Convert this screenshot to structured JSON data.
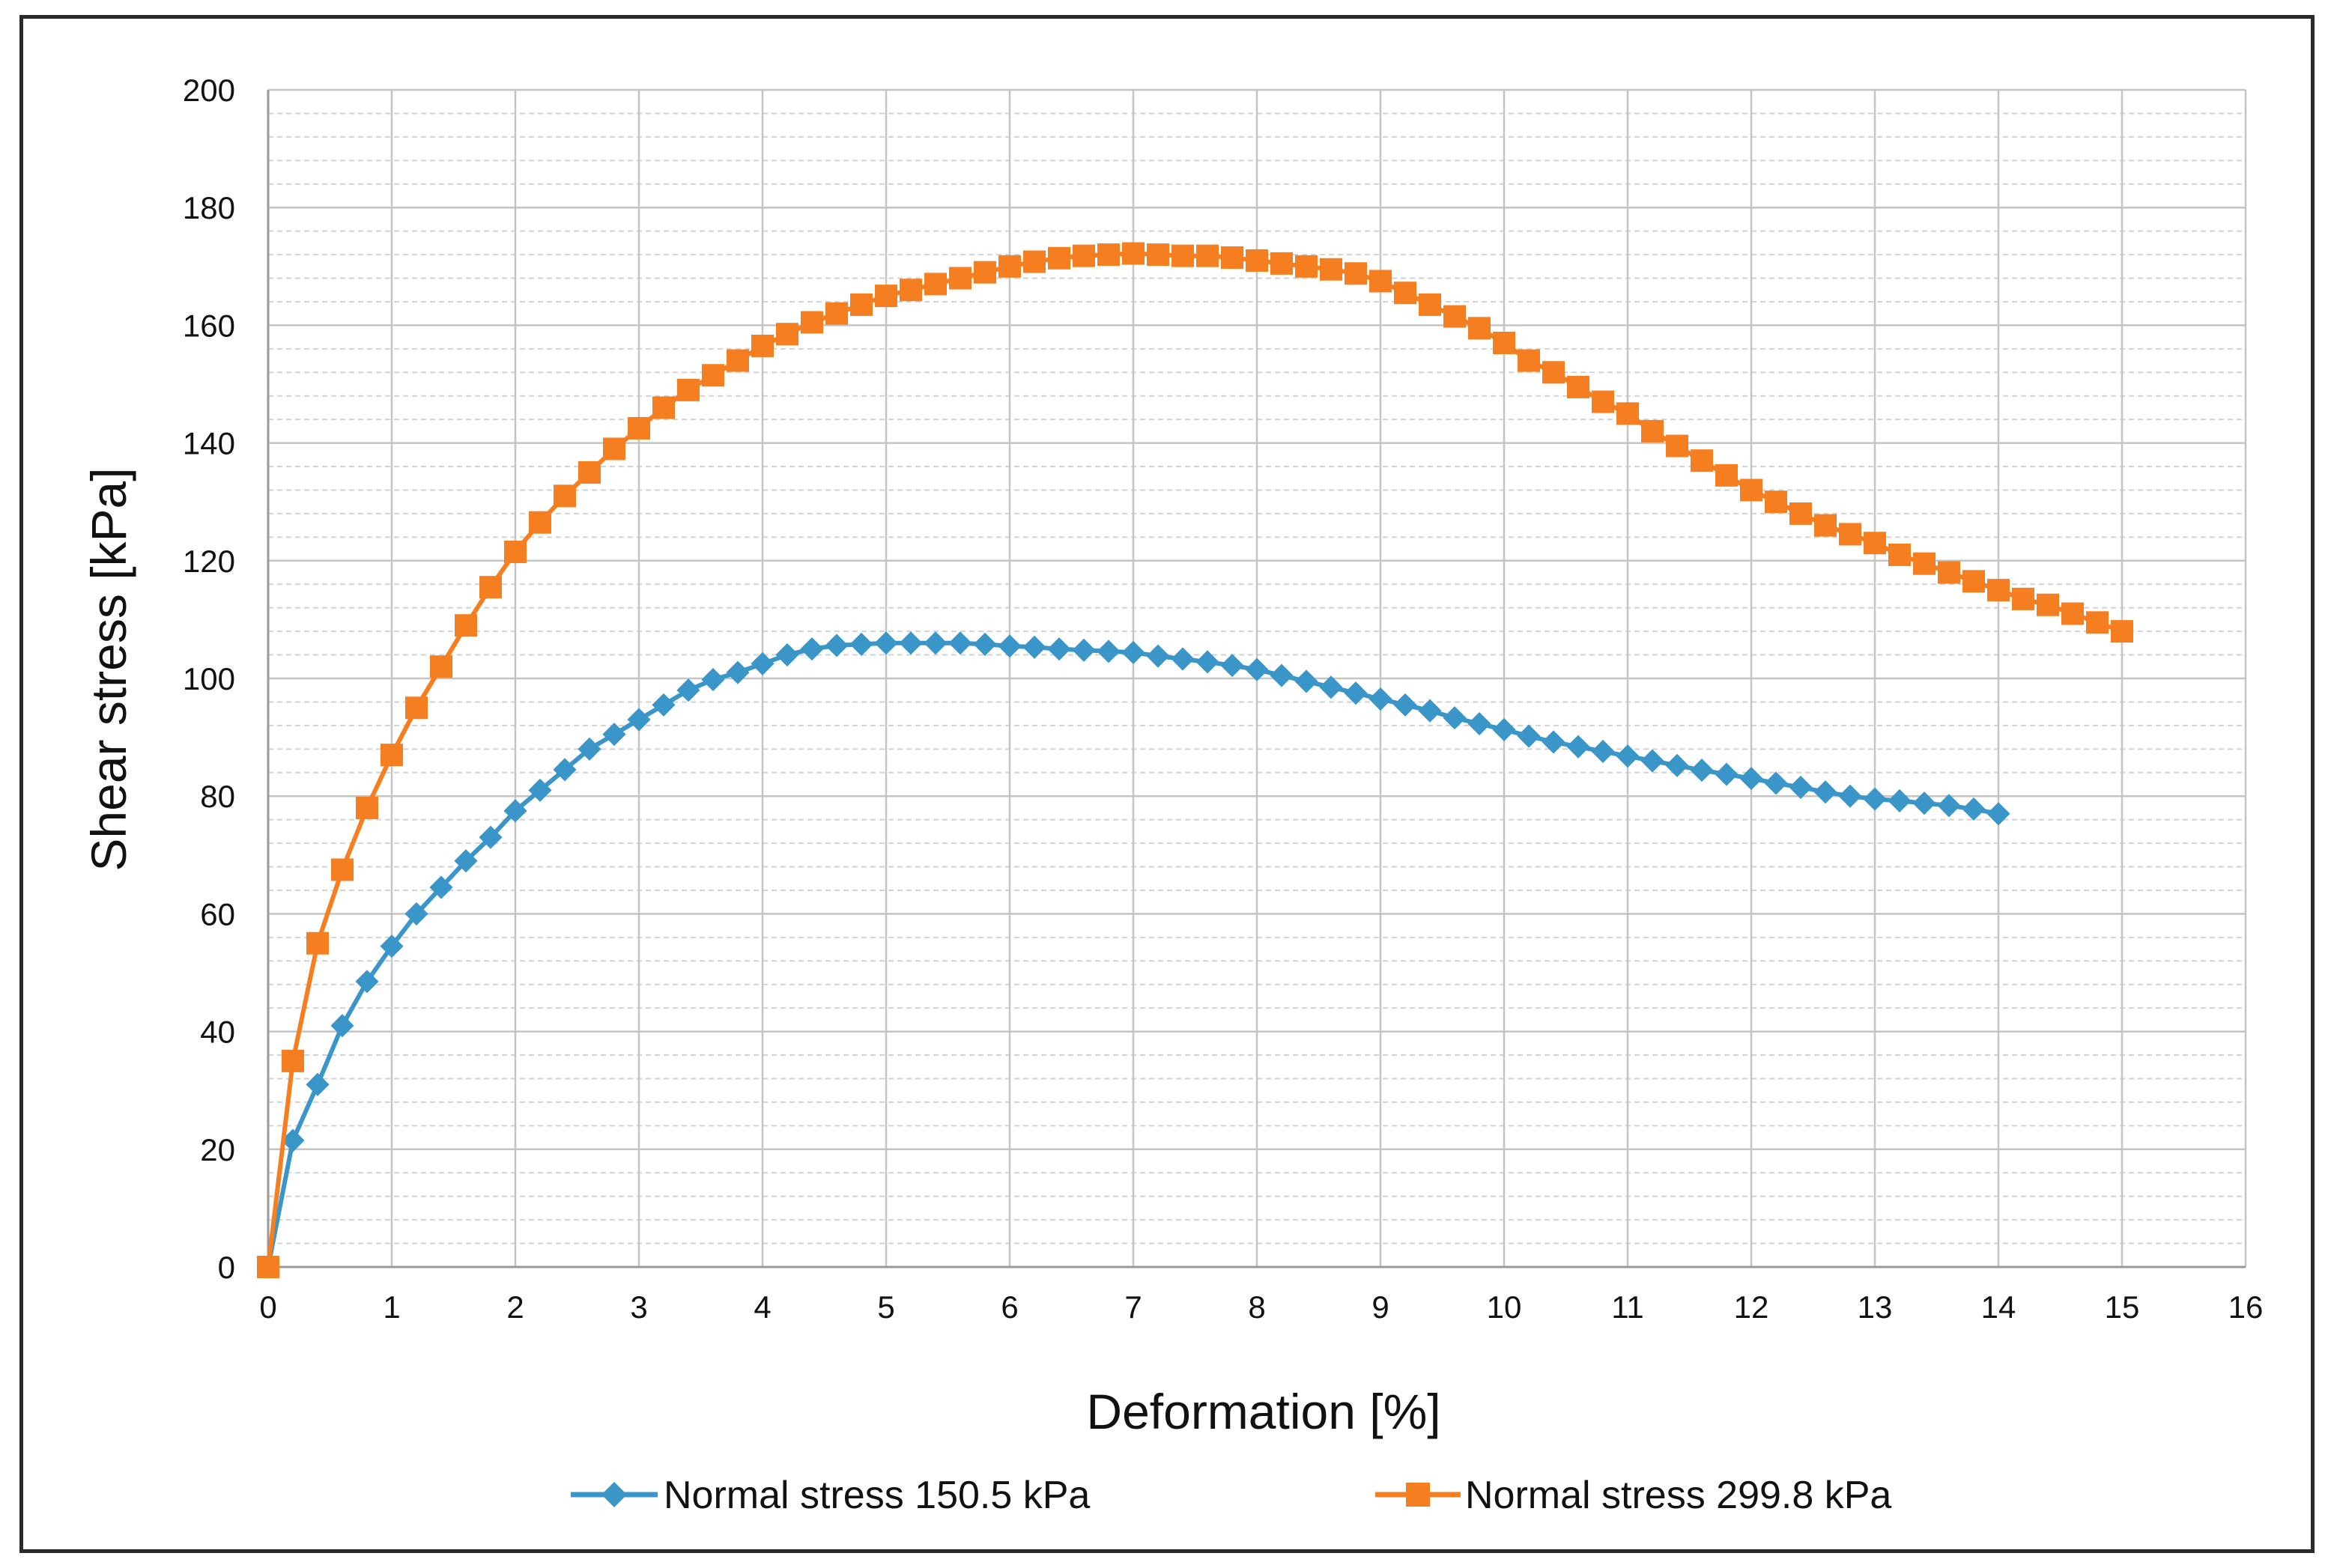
{
  "chart_data": {
    "type": "line",
    "title": "",
    "xlabel": "Deformation [%]",
    "ylabel": "Shear stress [kPa]",
    "xlim": [
      0,
      16
    ],
    "ylim": [
      0,
      200
    ],
    "xticks": [
      0,
      1,
      2,
      3,
      4,
      5,
      6,
      7,
      8,
      9,
      10,
      11,
      12,
      13,
      14,
      15,
      16
    ],
    "yticks": [
      0,
      20,
      40,
      60,
      80,
      100,
      120,
      140,
      160,
      180,
      200
    ],
    "grid": true,
    "legend_position": "bottom",
    "series": [
      {
        "name": "Normal stress 150.5 kPa",
        "color": "#3a96c8",
        "marker": "diamond",
        "x": [
          0,
          0.2,
          0.4,
          0.6,
          0.8,
          1.0,
          1.2,
          1.4,
          1.6,
          1.8,
          2.0,
          2.2,
          2.4,
          2.6,
          2.8,
          3.0,
          3.2,
          3.4,
          3.6,
          3.8,
          4.0,
          4.2,
          4.4,
          4.6,
          4.8,
          5.0,
          5.2,
          5.4,
          5.6,
          5.8,
          6.0,
          6.2,
          6.4,
          6.6,
          6.8,
          7.0,
          7.2,
          7.4,
          7.6,
          7.8,
          8.0,
          8.2,
          8.4,
          8.6,
          8.8,
          9.0,
          9.2,
          9.4,
          9.6,
          9.8,
          10.0,
          10.2,
          10.4,
          10.6,
          10.8,
          11.0,
          11.2,
          11.4,
          11.6,
          11.8,
          12.0,
          12.2,
          12.4,
          12.6,
          12.8,
          13.0,
          13.2,
          13.4,
          13.6,
          13.8,
          14.0
        ],
        "values": [
          0,
          21.5,
          31,
          41,
          48.5,
          54.5,
          60,
          64.5,
          69,
          73,
          77.5,
          81,
          84.5,
          88,
          90.5,
          93,
          95.5,
          98,
          99.8,
          101,
          102.5,
          104,
          105,
          105.6,
          105.8,
          106,
          106,
          106,
          106,
          105.8,
          105.5,
          105.3,
          105,
          104.8,
          104.6,
          104.4,
          103.8,
          103.3,
          102.8,
          102.2,
          101.5,
          100.5,
          99.5,
          98.5,
          97.5,
          96.5,
          95.5,
          94.5,
          93.3,
          92.3,
          91.3,
          90.2,
          89.2,
          88.4,
          87.6,
          86.8,
          86,
          85.2,
          84.4,
          83.7,
          83,
          82.2,
          81.5,
          80.7,
          80,
          79.5,
          79.2,
          78.8,
          78.4,
          77.8,
          77
        ]
      },
      {
        "name": "Normal stress 299.8 kPa",
        "color": "#f57f20",
        "marker": "square",
        "x": [
          0,
          0.2,
          0.4,
          0.6,
          0.8,
          1.0,
          1.2,
          1.4,
          1.6,
          1.8,
          2.0,
          2.2,
          2.4,
          2.6,
          2.8,
          3.0,
          3.2,
          3.4,
          3.6,
          3.8,
          4.0,
          4.2,
          4.4,
          4.6,
          4.8,
          5.0,
          5.2,
          5.4,
          5.6,
          5.8,
          6.0,
          6.2,
          6.4,
          6.6,
          6.8,
          7.0,
          7.2,
          7.4,
          7.6,
          7.8,
          8.0,
          8.2,
          8.4,
          8.6,
          8.8,
          9.0,
          9.2,
          9.4,
          9.6,
          9.8,
          10.0,
          10.2,
          10.4,
          10.6,
          10.8,
          11.0,
          11.2,
          11.4,
          11.6,
          11.8,
          12.0,
          12.2,
          12.4,
          12.6,
          12.8,
          13.0,
          13.2,
          13.4,
          13.6,
          13.8,
          14.0,
          14.2,
          14.4,
          14.6,
          14.8,
          15.0
        ],
        "values": [
          0,
          35,
          55,
          67.5,
          78,
          87,
          95,
          102,
          109,
          115.5,
          121.5,
          126.5,
          131,
          135,
          139,
          142.5,
          146,
          149,
          151.5,
          154,
          156.5,
          158.5,
          160.5,
          162,
          163.5,
          165,
          166,
          167,
          168,
          169,
          170,
          170.8,
          171.4,
          171.8,
          172,
          172.2,
          172,
          171.8,
          171.8,
          171.5,
          171,
          170.5,
          170,
          169.5,
          168.8,
          167.5,
          165.5,
          163.5,
          161.5,
          159.5,
          157,
          154,
          152,
          149.5,
          147,
          145,
          142,
          139.5,
          137,
          134.5,
          132,
          130,
          128,
          126,
          124.5,
          123,
          121,
          119.5,
          118,
          116.5,
          115,
          113.5,
          112.5,
          111,
          109.5,
          108
        ]
      }
    ]
  }
}
